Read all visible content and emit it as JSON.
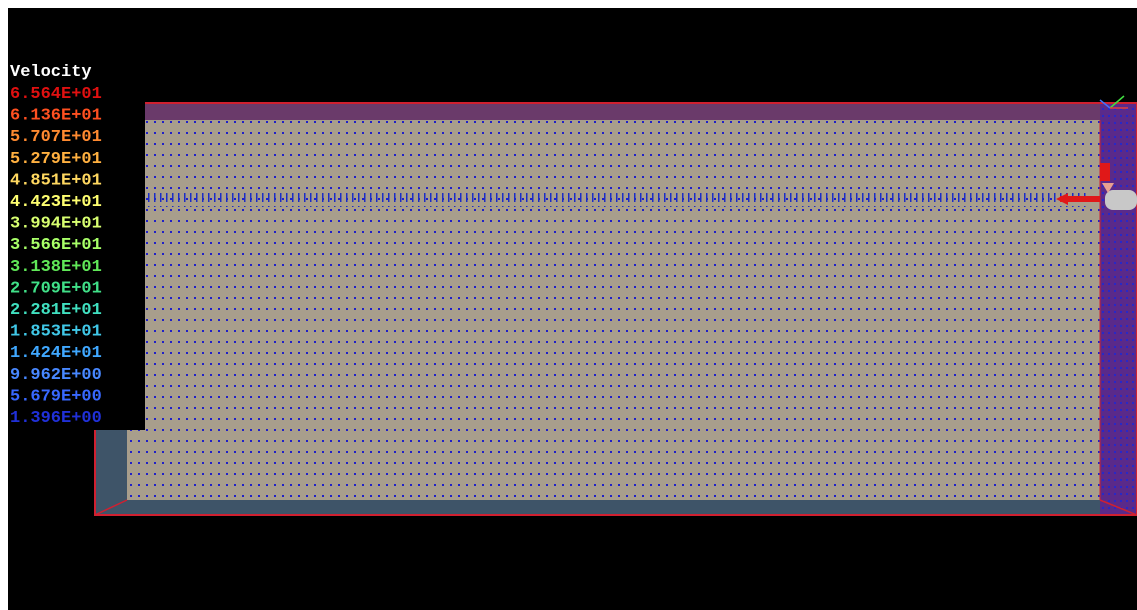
{
  "legend": {
    "title": "Velocity",
    "items": [
      {
        "label": "6.564E+01",
        "color": "#e01010"
      },
      {
        "label": "6.136E+01",
        "color": "#ff5020"
      },
      {
        "label": "5.707E+01",
        "color": "#ff8a30"
      },
      {
        "label": "5.279E+01",
        "color": "#ffb040"
      },
      {
        "label": "4.851E+01",
        "color": "#ffd860"
      },
      {
        "label": "4.423E+01",
        "color": "#ffff70"
      },
      {
        "label": "3.994E+01",
        "color": "#d8ff70"
      },
      {
        "label": "3.566E+01",
        "color": "#a8ff68"
      },
      {
        "label": "3.138E+01",
        "color": "#60e858"
      },
      {
        "label": "2.709E+01",
        "color": "#40e088"
      },
      {
        "label": "2.281E+01",
        "color": "#40e0c0"
      },
      {
        "label": "1.853E+01",
        "color": "#40c8e8"
      },
      {
        "label": "1.424E+01",
        "color": "#40a8ff"
      },
      {
        "label": "9.962E+00",
        "color": "#4888ff"
      },
      {
        "label": "5.679E+00",
        "color": "#3868ff"
      },
      {
        "label": "1.396E+00",
        "color": "#2030d8"
      }
    ]
  }
}
